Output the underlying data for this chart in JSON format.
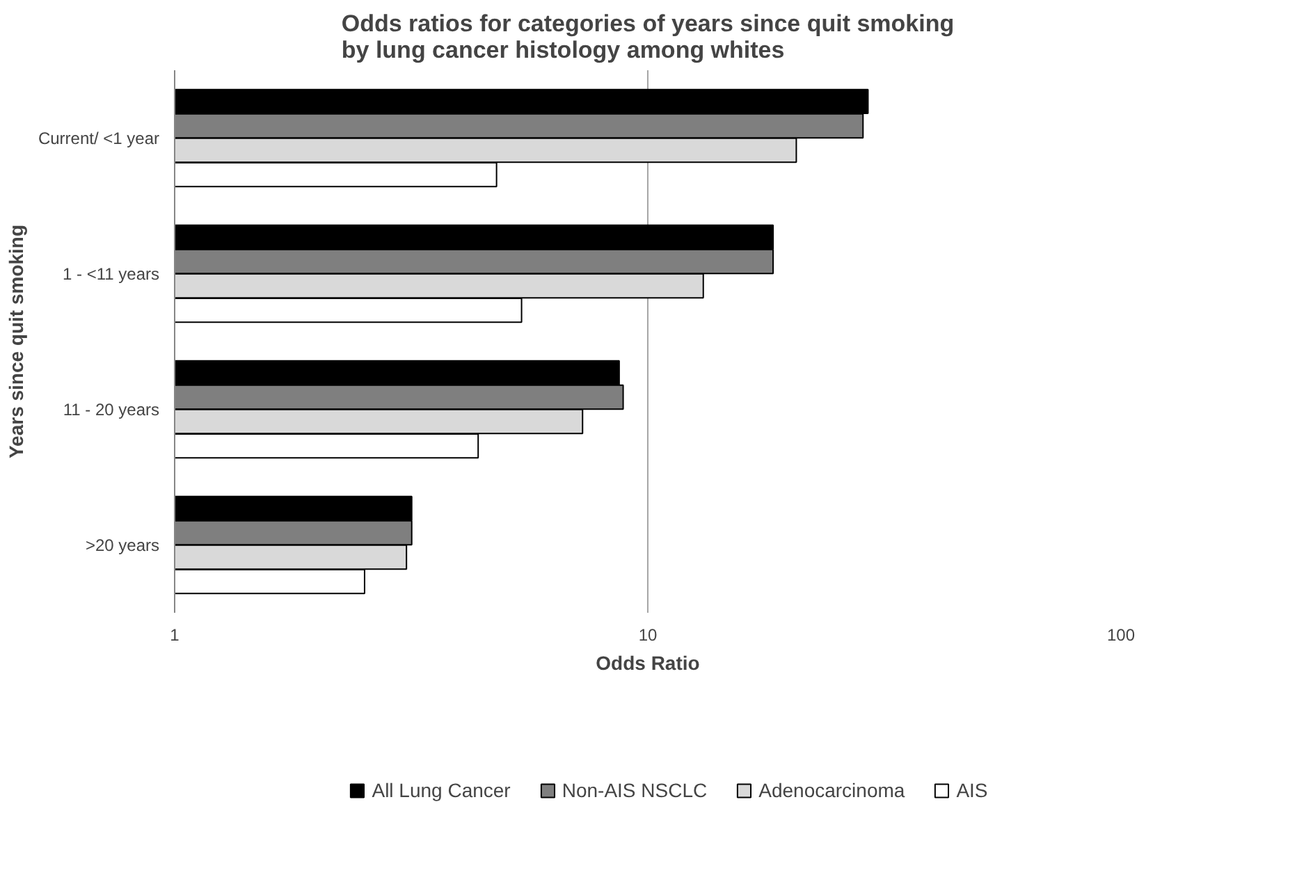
{
  "chart_data": {
    "type": "bar",
    "orientation": "horizontal",
    "title": "Odds ratios for categories of years since quit smoking\nby lung cancer histology among whites",
    "xlabel": "Odds Ratio",
    "ylabel": "Years since quit smoking",
    "categories": [
      "Current/ <1 year",
      "1 - <11 years",
      "11 - 20 years",
      ">20 years"
    ],
    "series": [
      {
        "name": "All Lung Cancer",
        "color": "#000000",
        "values": [
          29.2,
          18.4,
          8.7,
          3.17
        ]
      },
      {
        "name": "Non-AIS NSCLC",
        "color": "#7f7f7f",
        "values": [
          28.5,
          18.4,
          8.87,
          3.17
        ]
      },
      {
        "name": "Adenocarcinoma",
        "color": "#d9d9d9",
        "values": [
          20.6,
          13.1,
          7.28,
          3.09
        ]
      },
      {
        "name": "AIS",
        "color": "#ffffff",
        "values": [
          4.79,
          5.41,
          4.38,
          2.52
        ]
      }
    ],
    "log": "x",
    "xlim": [
      1,
      100
    ],
    "xticks": [
      1,
      10,
      100
    ],
    "grid": "x",
    "legend": "bottom"
  }
}
